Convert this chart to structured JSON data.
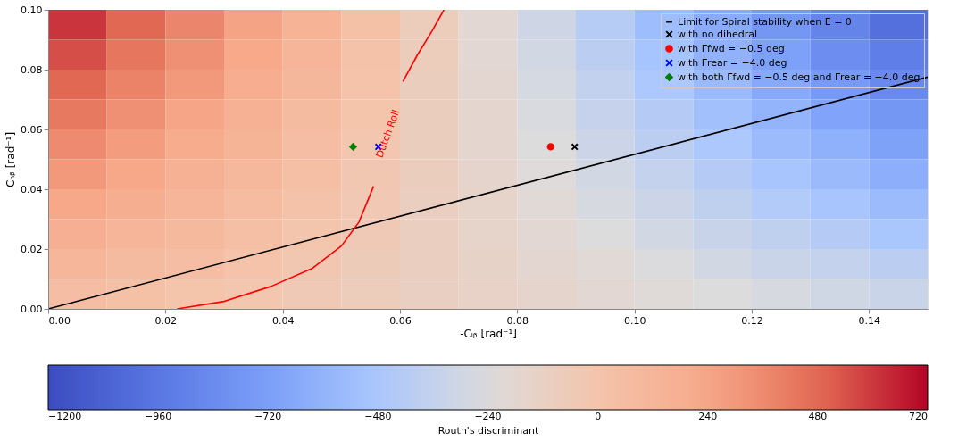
{
  "chart_data": {
    "type": "heatmap",
    "xlabel": "-Cₗᵦ [rad⁻¹]",
    "ylabel": "Cₙᵦ [rad⁻¹]",
    "clabel": "Routh's discriminant",
    "xlim": [
      0,
      0.15
    ],
    "ylim": [
      0,
      0.1
    ],
    "xticks": [
      {
        "value": 0,
        "label": "0.00"
      },
      {
        "value": 0.02,
        "label": "0.02"
      },
      {
        "value": 0.04,
        "label": "0.04"
      },
      {
        "value": 0.06,
        "label": "0.06"
      },
      {
        "value": 0.08,
        "label": "0.08"
      },
      {
        "value": 0.1,
        "label": "0.10"
      },
      {
        "value": 0.12,
        "label": "0.12"
      },
      {
        "value": 0.14,
        "label": "0.14"
      }
    ],
    "yticks": [
      {
        "value": 0,
        "label": "0.00"
      },
      {
        "value": 0.02,
        "label": "0.02"
      },
      {
        "value": 0.04,
        "label": "0.04"
      },
      {
        "value": 0.06,
        "label": "0.06"
      },
      {
        "value": 0.08,
        "label": "0.08"
      },
      {
        "value": 0.1,
        "label": "0.10"
      }
    ],
    "clim": [
      -1200,
      720
    ],
    "cticks": [
      -1200,
      -960,
      -720,
      -480,
      -240,
      0,
      240,
      480,
      720
    ],
    "cells": [
      [
        610,
        490,
        380,
        260,
        150,
        30,
        -80,
        -190,
        -310,
        -420,
        -540,
        -650,
        -770,
        -880,
        -1000
      ],
      [
        550,
        440,
        340,
        230,
        130,
        20,
        -80,
        -190,
        -290,
        -400,
        -500,
        -610,
        -710,
        -820,
        -920
      ],
      [
        490,
        390,
        300,
        200,
        110,
        10,
        -90,
        -180,
        -280,
        -370,
        -470,
        -560,
        -660,
        -750,
        -850
      ],
      [
        430,
        340,
        250,
        170,
        80,
        0,
        -90,
        -170,
        -260,
        -350,
        -430,
        -520,
        -600,
        -690,
        -770
      ],
      [
        360,
        290,
        210,
        140,
        60,
        -20,
        -90,
        -170,
        -240,
        -320,
        -400,
        -470,
        -550,
        -620,
        -700
      ],
      [
        300,
        240,
        170,
        100,
        40,
        -30,
        -90,
        -160,
        -230,
        -290,
        -360,
        -430,
        -490,
        -560,
        -630
      ],
      [
        240,
        190,
        130,
        70,
        20,
        -40,
        -100,
        -150,
        -210,
        -270,
        -320,
        -380,
        -440,
        -490,
        -550
      ],
      [
        180,
        130,
        90,
        40,
        -10,
        -50,
        -100,
        -150,
        -190,
        -240,
        -290,
        -340,
        -380,
        -430,
        -480
      ],
      [
        120,
        80,
        50,
        10,
        -30,
        -70,
        -100,
        -140,
        -180,
        -210,
        -250,
        -290,
        -330,
        -360,
        -400
      ],
      [
        60,
        30,
        0,
        -20,
        -50,
        -80,
        -110,
        -130,
        -160,
        -190,
        -220,
        -240,
        -270,
        -300,
        -330
      ]
    ],
    "series": [
      {
        "type": "line",
        "name": "Limit for Spiral stability when E = 0",
        "color": "#000000",
        "x": [
          0,
          0.15
        ],
        "values": [
          0,
          0.0775
        ]
      },
      {
        "type": "line",
        "color": "#ff0000",
        "x": [
          0.022,
          0.03,
          0.038,
          0.045,
          0.05,
          0.053,
          0.0555,
          0.058,
          0.0605,
          0.063,
          0.0655,
          0.0675
        ],
        "values": [
          0,
          0.0025,
          0.0075,
          0.0135,
          0.021,
          0.029,
          0.041,
          null,
          0.076,
          0.085,
          0.093,
          0.1
        ]
      },
      {
        "type": "scatter",
        "name": "with no dihedral",
        "color": "#000000",
        "marker": "cross",
        "x": [
          0.0898
        ],
        "values": [
          0.0542
        ]
      },
      {
        "type": "scatter",
        "name": "with Γfwd = −0.5 deg",
        "color": "#ff0000",
        "marker": "circle",
        "x": [
          0.0857
        ],
        "values": [
          0.0542
        ]
      },
      {
        "type": "scatter",
        "name": "with Γrear = −4.0 deg",
        "color": "#0000ff",
        "marker": "cross",
        "x": [
          0.0563
        ],
        "values": [
          0.0542
        ]
      },
      {
        "type": "scatter",
        "name": "with both Γfwd = −0.5 deg and Γrear = −4.0 deg",
        "color": "#008000",
        "marker": "diamond",
        "x": [
          0.052
        ],
        "values": [
          0.0542
        ]
      }
    ],
    "annotations": [
      "Dutch Roll"
    ],
    "legend": "top right",
    "grid": false
  }
}
